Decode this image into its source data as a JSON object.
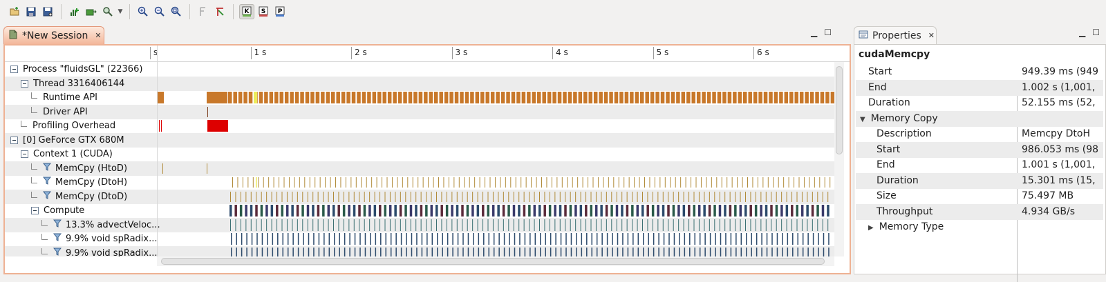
{
  "toolbar": {
    "buttons": [
      {
        "name": "new-session-icon"
      },
      {
        "name": "save-icon"
      },
      {
        "name": "save-as-icon"
      },
      {
        "name": "add-metrics-icon"
      },
      {
        "name": "export-icon"
      },
      {
        "name": "search-icon"
      },
      {
        "name": "zoom-in-icon"
      },
      {
        "name": "zoom-out-icon"
      },
      {
        "name": "zoom-fit-icon"
      },
      {
        "name": "filter-icon"
      },
      {
        "name": "reset-icon"
      },
      {
        "name": "kernel-view-icon",
        "letter": "K"
      },
      {
        "name": "stream-view-icon",
        "letter": "S"
      },
      {
        "name": "process-view-icon",
        "letter": "P"
      }
    ]
  },
  "session": {
    "tab_label": "*New Session",
    "ruler": [
      "s",
      "1 s",
      "2 s",
      "3 s",
      "4 s",
      "5 s",
      "6 s"
    ],
    "rows": [
      {
        "label": "Process \"fluidsGL\" (22366)",
        "indent": 0,
        "kind": "expand"
      },
      {
        "label": "Thread 3316406144",
        "indent": 1,
        "kind": "expand"
      },
      {
        "label": "Runtime API",
        "indent": 2,
        "kind": "leaf"
      },
      {
        "label": "Driver API",
        "indent": 2,
        "kind": "leaf"
      },
      {
        "label": "Profiling Overhead",
        "indent": 1,
        "kind": "leaf"
      },
      {
        "label": "[0] GeForce GTX 680M",
        "indent": 0,
        "kind": "expand"
      },
      {
        "label": "Context 1 (CUDA)",
        "indent": 1,
        "kind": "expand"
      },
      {
        "label": "MemCpy (HtoD)",
        "indent": 2,
        "kind": "filter"
      },
      {
        "label": "MemCpy (DtoH)",
        "indent": 2,
        "kind": "filter"
      },
      {
        "label": "MemCpy (DtoD)",
        "indent": 2,
        "kind": "filter"
      },
      {
        "label": "Compute",
        "indent": 2,
        "kind": "expand"
      },
      {
        "label": "13.3% advectVeloc...",
        "indent": 3,
        "kind": "filter"
      },
      {
        "label": "9.9% void spRadix...",
        "indent": 3,
        "kind": "filter"
      },
      {
        "label": "9.9% void spRadix...",
        "indent": 3,
        "kind": "filter"
      }
    ],
    "colors": {
      "runtime": "#c8782a",
      "selected": "#ecec5a",
      "overhead": "#dd0000",
      "memcpy": "#b08a38",
      "compute": "#2c4a6b",
      "kernel": "#3a6f72"
    }
  },
  "properties": {
    "tab_label": "Properties",
    "title": "cudaMemcpy",
    "rows": [
      {
        "key": "Start",
        "value": "949.39 ms (949",
        "indent": 1
      },
      {
        "key": "End",
        "value": "1.002 s (1,001,",
        "indent": 1
      },
      {
        "key": "Duration",
        "value": "52.155 ms (52,",
        "indent": 1
      },
      {
        "key": "Memory Copy",
        "value": "",
        "indent": 0,
        "toggle": "▼"
      },
      {
        "key": "Description",
        "value": "Memcpy DtoH",
        "indent": 2
      },
      {
        "key": "Start",
        "value": "986.053 ms (98",
        "indent": 2
      },
      {
        "key": "End",
        "value": "1.001 s (1,001,",
        "indent": 2
      },
      {
        "key": "Duration",
        "value": "15.301 ms (15,",
        "indent": 2
      },
      {
        "key": "Size",
        "value": "75.497 MB",
        "indent": 2
      },
      {
        "key": "Throughput",
        "value": "4.934 GB/s",
        "indent": 2
      },
      {
        "key": "Memory Type",
        "value": "",
        "indent": 1,
        "toggle": "▶"
      }
    ]
  }
}
